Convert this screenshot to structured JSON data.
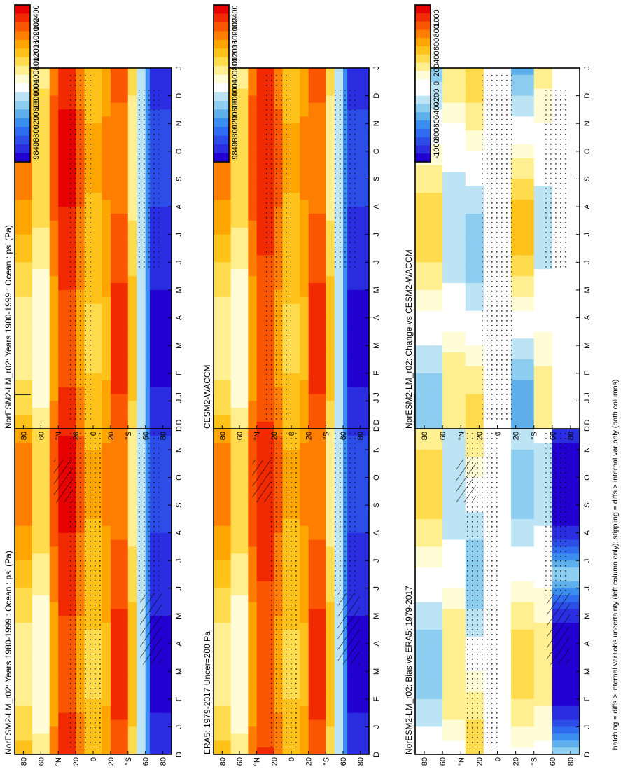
{
  "footnote": "hatching = diffs > internal var+obs uncertainty (left column only); stippling = diffs > internal var only (both columns)",
  "abs_colorbar": {
    "labels": [
      "102400",
      "102000",
      "101600",
      "101200",
      "100800",
      "100400",
      "100000",
      "99600",
      "99200",
      "98800",
      "98400"
    ],
    "colors": [
      "#e60000",
      "#f22a00",
      "#fa5500",
      "#fd7e00",
      "#ffa500",
      "#ffc21b",
      "#ffdb4d",
      "#ffef90",
      "#fffcd6",
      "#ffffff",
      "#bde4f5",
      "#8ccdf0",
      "#5fb0ea",
      "#3a8ef0",
      "#2f6df0",
      "#2d4de8",
      "#2a2ee0",
      "#2200d2"
    ]
  },
  "diff_colorbar": {
    "labels": [
      "1000",
      "800",
      "600",
      "400",
      "200",
      "0",
      "-200",
      "-400",
      "-600",
      "-800",
      "-1000"
    ],
    "colors": [
      "#e60000",
      "#f22a00",
      "#fa5500",
      "#fd7e00",
      "#ffa500",
      "#ffc21b",
      "#ffdb4d",
      "#ffef90",
      "#fffcd6",
      "#ffffff",
      "#ffffff",
      "#bde4f5",
      "#8ccdf0",
      "#5fb0ea",
      "#3a8ef0",
      "#2f6df0",
      "#2d4de8",
      "#2a2ee0",
      "#2200d2"
    ]
  },
  "chart_data": [
    {
      "type": "heatmap",
      "title": "NorESM2-LM_r02: Years 1980-1999 : Ocean : psl (Pa)",
      "x_ticks": [
        "D",
        "J",
        "F",
        "M",
        "A",
        "M",
        "J",
        "J",
        "A",
        "S",
        "O",
        "N",
        "D",
        "J"
      ],
      "y_ticks": [
        "80",
        "60",
        "°N",
        "20",
        "0",
        "20",
        "°S",
        "60",
        "80"
      ],
      "colorbar": "abs",
      "seasonal_peaks_pa": [
        102400,
        101600,
        101200,
        100800,
        100400,
        100000,
        99200,
        98400
      ]
    },
    {
      "type": "heatmap",
      "title": "NorESM2-LM_r02: Years 1980-1999 : Ocean : psl (Pa)",
      "x_ticks": [
        "D",
        "J",
        "F",
        "M",
        "A",
        "M",
        "J",
        "J",
        "A",
        "S",
        "O",
        "N",
        "D",
        "J"
      ],
      "y_ticks": [
        "80",
        "60",
        "°N",
        "20",
        "0",
        "20",
        "°S",
        "60",
        "80"
      ],
      "colorbar": "abs"
    },
    {
      "type": "heatmap",
      "title": "ERA5: 1979-2017 Uncer=200 Pa",
      "x_ticks": [
        "D",
        "J",
        "F",
        "M",
        "A",
        "M",
        "J",
        "J",
        "A",
        "S",
        "O",
        "N",
        "D",
        "J"
      ],
      "y_ticks": [
        "80",
        "60",
        "°N",
        "20",
        "0",
        "20",
        "°S",
        "60",
        "80"
      ],
      "colorbar": "abs"
    },
    {
      "type": "heatmap",
      "title": "CESM2-WACCM",
      "x_ticks": [
        "D",
        "J",
        "F",
        "M",
        "A",
        "M",
        "J",
        "J",
        "A",
        "S",
        "O",
        "N",
        "D",
        "J"
      ],
      "y_ticks": [
        "80",
        "60",
        "°N",
        "20",
        "0",
        "20",
        "°S",
        "60",
        "80"
      ],
      "colorbar": "abs"
    },
    {
      "type": "heatmap",
      "title": "NorESM2-LM_r02: Bias vs ERA5: 1979-2017",
      "x_ticks": [
        "D",
        "J",
        "F",
        "M",
        "A",
        "M",
        "J",
        "J",
        "A",
        "S",
        "O",
        "N",
        "D",
        "J"
      ],
      "y_ticks": [
        "80",
        "60",
        "°N",
        "20",
        "0",
        "20",
        "°S",
        "60",
        "80"
      ],
      "colorbar": "diff"
    },
    {
      "type": "heatmap",
      "title": "NorESM2-LM_r02: Change vs CESM2-WACCM",
      "x_ticks": [
        "D",
        "J",
        "F",
        "M",
        "A",
        "M",
        "J",
        "J",
        "A",
        "S",
        "O",
        "N",
        "D",
        "J"
      ],
      "y_ticks": [
        "80",
        "60",
        "°N",
        "20",
        "0",
        "20",
        "°S",
        "60",
        "80"
      ],
      "colorbar": "diff"
    }
  ]
}
